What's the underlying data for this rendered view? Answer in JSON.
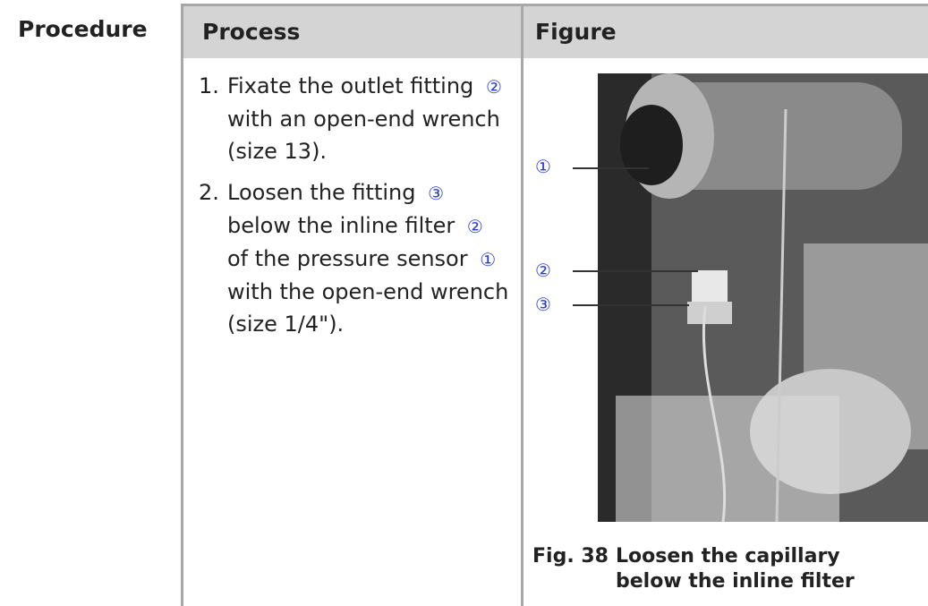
{
  "header": {
    "label": "Procedure"
  },
  "table": {
    "headers": [
      "Process",
      "Figure"
    ],
    "steps": [
      {
        "number": "1.",
        "parts": [
          {
            "text": "Fixate the outlet fitting"
          },
          {
            "ref": "②"
          },
          {
            "text": "with an open-end wrench (size 13)."
          }
        ]
      },
      {
        "number": "2.",
        "parts": [
          {
            "text": "Loosen the fitting"
          },
          {
            "ref": "③"
          },
          {
            "text": "below the inline filter"
          },
          {
            "ref": "②"
          },
          {
            "text": "of the pressure sensor"
          },
          {
            "ref": "①"
          },
          {
            "text": "with the open-end wrench (size 1/4\")."
          }
        ]
      }
    ]
  },
  "figure": {
    "callouts": [
      "①",
      "②",
      "③"
    ],
    "label": "Fig. 38",
    "caption": "Loosen the capillary below the inline filter"
  }
}
